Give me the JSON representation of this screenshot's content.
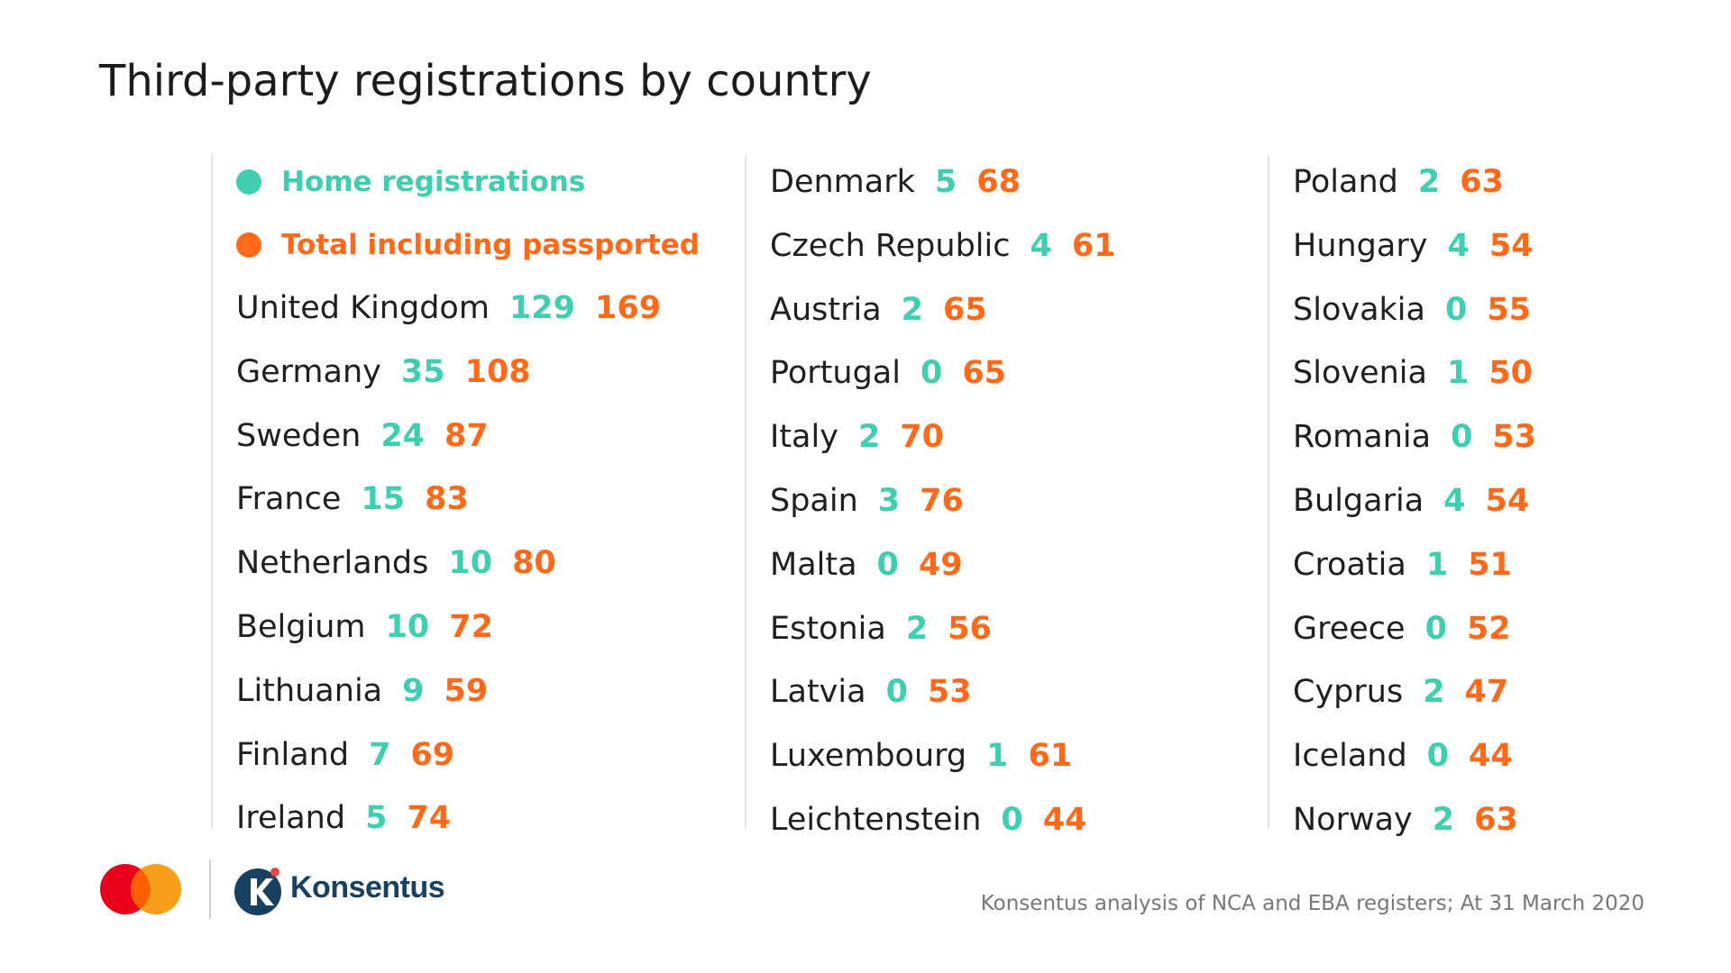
{
  "title": "Third-party registrations by country",
  "legend": {
    "home": {
      "label": "Home registrations",
      "color": "#3fcfb0"
    },
    "total": {
      "label": "Total including passported",
      "color": "#ff6a1a"
    }
  },
  "columns": [
    [
      {
        "country": "United Kingdom",
        "home": "129",
        "total": "169"
      },
      {
        "country": "Germany",
        "home": "35",
        "total": "108"
      },
      {
        "country": "Sweden",
        "home": "24",
        "total": "87"
      },
      {
        "country": "France",
        "home": "15",
        "total": "83"
      },
      {
        "country": "Netherlands",
        "home": "10",
        "total": "80"
      },
      {
        "country": "Belgium",
        "home": "10",
        "total": "72"
      },
      {
        "country": "Lithuania",
        "home": "9",
        "total": "59"
      },
      {
        "country": "Finland",
        "home": "7",
        "total": "69"
      },
      {
        "country": "Ireland",
        "home": "5",
        "total": "74"
      }
    ],
    [
      {
        "country": "Denmark",
        "home": "5",
        "total": "68"
      },
      {
        "country": "Czech Republic",
        "home": "4",
        "total": "61"
      },
      {
        "country": "Austria",
        "home": "2",
        "total": "65"
      },
      {
        "country": "Portugal",
        "home": "0",
        "total": "65"
      },
      {
        "country": "Italy",
        "home": "2",
        "total": "70"
      },
      {
        "country": "Spain",
        "home": "3",
        "total": "76"
      },
      {
        "country": "Malta",
        "home": "0",
        "total": "49"
      },
      {
        "country": "Estonia",
        "home": "2",
        "total": "56"
      },
      {
        "country": "Latvia",
        "home": "0",
        "total": "53"
      },
      {
        "country": "Luxembourg",
        "home": "1",
        "total": "61"
      },
      {
        "country": "Leichtenstein",
        "home": "0",
        "total": "44"
      }
    ],
    [
      {
        "country": "Poland",
        "home": "2",
        "total": "63"
      },
      {
        "country": "Hungary",
        "home": "4",
        "total": "54"
      },
      {
        "country": "Slovakia",
        "home": "0",
        "total": "55"
      },
      {
        "country": "Slovenia",
        "home": "1",
        "total": "50"
      },
      {
        "country": "Romania",
        "home": "0",
        "total": "53"
      },
      {
        "country": "Bulgaria",
        "home": "4",
        "total": "54"
      },
      {
        "country": "Croatia",
        "home": "1",
        "total": "51"
      },
      {
        "country": "Greece",
        "home": "0",
        "total": "52"
      },
      {
        "country": "Cyprus",
        "home": "2",
        "total": "47"
      },
      {
        "country": "Iceland",
        "home": "0",
        "total": "44"
      },
      {
        "country": "Norway",
        "home": "2",
        "total": "63"
      }
    ]
  ],
  "footer": {
    "mastercard_logo": "mastercard-logo-icon",
    "konsentus_name": "Konsentus",
    "source": "Konsentus analysis of NCA and EBA registers; At 31 March 2020"
  }
}
